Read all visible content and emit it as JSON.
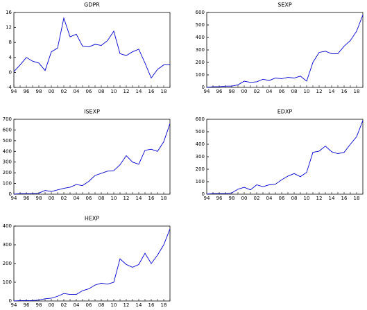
{
  "chart_data": [
    {
      "type": "line",
      "title": "GDPR",
      "color": "#0000cc",
      "categories": [
        "94",
        null,
        "96",
        null,
        "98",
        null,
        "00",
        null,
        "02",
        null,
        "04",
        null,
        "06",
        null,
        "08",
        null,
        "10",
        null,
        "12",
        null,
        "14",
        null,
        "16",
        null,
        "18",
        null
      ],
      "values": [
        0.2,
        2,
        4,
        3,
        2.5,
        0.5,
        5.5,
        6.5,
        14.5,
        9.5,
        10.2,
        7,
        6.8,
        7.5,
        7.2,
        8.5,
        11,
        5,
        4.5,
        5.5,
        6.2,
        2.5,
        -1.5,
        0.8,
        2,
        2
      ],
      "ylim": [
        -4,
        16
      ],
      "yticks": [
        -4,
        0,
        4,
        8,
        12,
        16
      ]
    },
    {
      "type": "line",
      "title": "SEXP",
      "color": "#0000cc",
      "categories": [
        "94",
        null,
        "96",
        null,
        "98",
        null,
        "00",
        null,
        "02",
        null,
        "04",
        null,
        "06",
        null,
        "08",
        null,
        "10",
        null,
        "12",
        null,
        "14",
        null,
        "16",
        null,
        "18",
        null
      ],
      "values": [
        0,
        5,
        5,
        10,
        10,
        20,
        50,
        40,
        45,
        65,
        55,
        75,
        70,
        80,
        75,
        90,
        50,
        200,
        280,
        290,
        270,
        270,
        330,
        375,
        450,
        580
      ],
      "ylim": [
        0,
        600
      ],
      "yticks": [
        0,
        100,
        200,
        300,
        400,
        500,
        600
      ]
    },
    {
      "type": "line",
      "title": "ISEXP",
      "color": "#0000cc",
      "categories": [
        "94",
        null,
        "96",
        null,
        "98",
        null,
        "00",
        null,
        "02",
        null,
        "04",
        null,
        "06",
        null,
        "08",
        null,
        "10",
        null,
        "12",
        null,
        "14",
        null,
        "16",
        null,
        "18",
        null
      ],
      "values": [
        0,
        5,
        5,
        5,
        10,
        35,
        25,
        40,
        55,
        65,
        90,
        80,
        120,
        175,
        195,
        215,
        220,
        275,
        360,
        300,
        280,
        410,
        420,
        400,
        490,
        660
      ],
      "ylim": [
        0,
        700
      ],
      "yticks": [
        0,
        100,
        200,
        300,
        400,
        500,
        600,
        700
      ]
    },
    {
      "type": "line",
      "title": "EDXP",
      "color": "#0000cc",
      "categories": [
        "94",
        null,
        "96",
        null,
        "98",
        null,
        "00",
        null,
        "02",
        null,
        "04",
        null,
        "06",
        null,
        "08",
        null,
        "10",
        null,
        "12",
        null,
        "14",
        null,
        "16",
        null,
        "18",
        null
      ],
      "values": [
        0,
        5,
        5,
        5,
        10,
        40,
        55,
        35,
        75,
        60,
        75,
        80,
        115,
        145,
        165,
        140,
        175,
        335,
        345,
        385,
        340,
        325,
        335,
        400,
        460,
        590
      ],
      "ylim": [
        0,
        600
      ],
      "yticks": [
        0,
        100,
        200,
        300,
        400,
        500,
        600
      ]
    },
    {
      "type": "line",
      "title": "HEXP",
      "color": "#0000cc",
      "categories": [
        "94",
        null,
        "96",
        null,
        "98",
        null,
        "00",
        null,
        "02",
        null,
        "04",
        null,
        "06",
        null,
        "08",
        null,
        "10",
        null,
        "12",
        null,
        "14",
        null,
        "16",
        null,
        "18",
        null
      ],
      "values": [
        0,
        2,
        2,
        2,
        5,
        12,
        15,
        25,
        40,
        35,
        35,
        55,
        65,
        85,
        95,
        90,
        100,
        225,
        195,
        180,
        195,
        255,
        200,
        245,
        300,
        385
      ],
      "ylim": [
        0,
        400
      ],
      "yticks": [
        0,
        100,
        200,
        300,
        400
      ]
    }
  ]
}
